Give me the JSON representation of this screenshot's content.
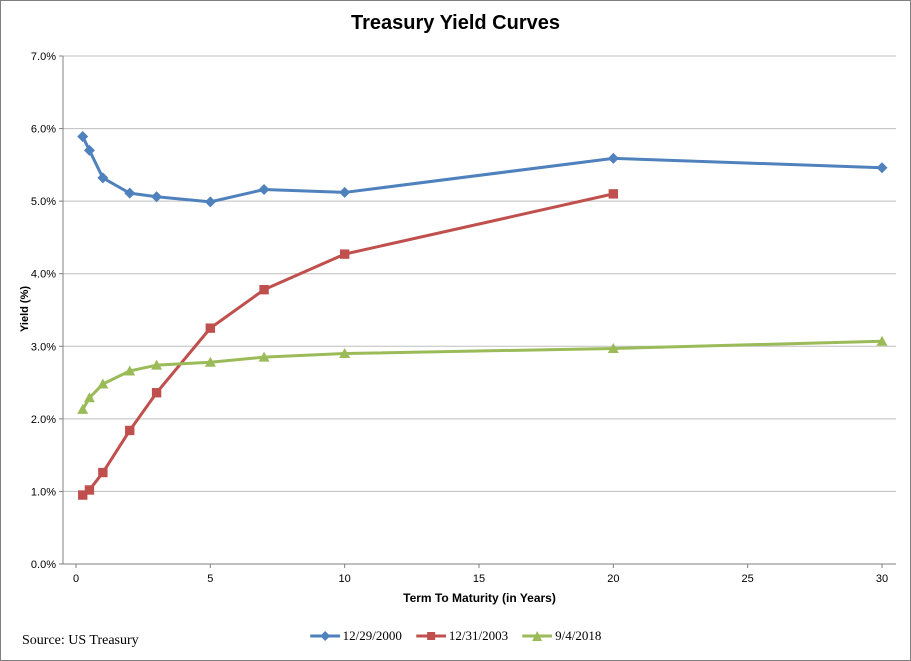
{
  "title": "Treasury Yield Curves",
  "source_note": "Source: US Treasury",
  "colors": {
    "series_blue": "#4F81BD",
    "series_red": "#C0504D",
    "series_green": "#9BBB59",
    "gridline": "#BFBFBF",
    "axis_line": "#808080",
    "text": "#000000",
    "chart_border": "#7F7F7F",
    "background": "#FFFFFF"
  },
  "chart_data": {
    "type": "line",
    "title": "Treasury Yield Curves",
    "xlabel": "Term To Maturity (in Years)",
    "ylabel": "Yield  (%)",
    "xlim": [
      -0.48,
      30.52
    ],
    "ylim": [
      0,
      7
    ],
    "x_ticks": [
      0,
      5,
      10,
      15,
      20,
      25,
      30
    ],
    "y_ticks": [
      0,
      1,
      2,
      3,
      4,
      5,
      6,
      7
    ],
    "y_tick_labels": [
      "0.0%",
      "1.0%",
      "2.0%",
      "3.0%",
      "4.0%",
      "5.0%",
      "6.0%",
      "7.0%"
    ],
    "grid": "horizontal",
    "legend_position": "bottom-center",
    "series": [
      {
        "name": "12/29/2000",
        "color": "#4F81BD",
        "marker": "diamond",
        "x": [
          0.25,
          0.5,
          1,
          2,
          3,
          5,
          7,
          10,
          20,
          30
        ],
        "y": [
          5.89,
          5.7,
          5.32,
          5.11,
          5.06,
          4.99,
          5.16,
          5.12,
          5.59,
          5.46
        ]
      },
      {
        "name": "12/31/2003",
        "color": "#C0504D",
        "marker": "square",
        "x": [
          0.25,
          0.5,
          1,
          2,
          3,
          5,
          7,
          10,
          20
        ],
        "y": [
          0.95,
          1.02,
          1.26,
          1.84,
          2.36,
          3.25,
          3.78,
          4.27,
          5.1
        ]
      },
      {
        "name": "9/4/2018",
        "color": "#9BBB59",
        "marker": "triangle",
        "x": [
          0.25,
          0.5,
          1,
          2,
          3,
          5,
          7,
          10,
          20,
          30
        ],
        "y": [
          2.13,
          2.29,
          2.48,
          2.66,
          2.74,
          2.78,
          2.85,
          2.9,
          2.97,
          3.07
        ]
      }
    ]
  }
}
